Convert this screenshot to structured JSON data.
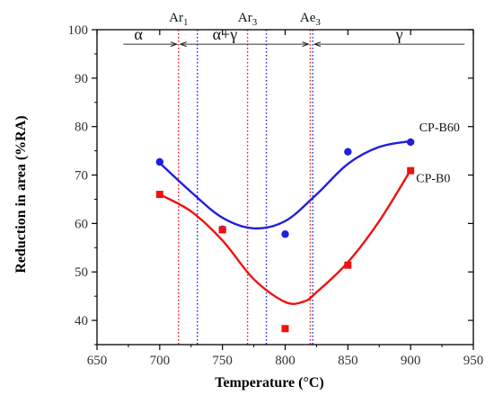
{
  "chart_data": {
    "type": "scatter",
    "xlabel": "Temperature (°C)",
    "ylabel": "Reduction in area (%RA)",
    "xlim": [
      650,
      950
    ],
    "ylim": [
      35,
      100
    ],
    "x_ticks": [
      "650",
      "700",
      "750",
      "800",
      "850",
      "900",
      "950"
    ],
    "y_ticks": [
      "40",
      "50",
      "60",
      "70",
      "80",
      "90",
      "100"
    ],
    "grid": false,
    "series": [
      {
        "name": "CP-B60",
        "color": "#1f1fe0",
        "marker": "circle",
        "x": [
          700,
          750,
          800,
          850,
          900
        ],
        "y": [
          72.7,
          58.8,
          57.8,
          74.8,
          76.8
        ],
        "fit_curve": [
          [
            700,
            72.5
          ],
          [
            725,
            66.5
          ],
          [
            750,
            61.2
          ],
          [
            775,
            59.0
          ],
          [
            800,
            60.5
          ],
          [
            825,
            66.0
          ],
          [
            850,
            72.3
          ],
          [
            875,
            75.8
          ],
          [
            900,
            77.0
          ]
        ]
      },
      {
        "name": "CP-B0",
        "color": "#ee1111",
        "marker": "square",
        "x": [
          700,
          750,
          800,
          850,
          900
        ],
        "y": [
          66.0,
          58.7,
          38.3,
          51.4,
          70.9
        ],
        "fit_curve": [
          [
            700,
            66.0
          ],
          [
            725,
            62.5
          ],
          [
            750,
            56.5
          ],
          [
            775,
            48.5
          ],
          [
            800,
            43.8
          ],
          [
            815,
            43.9
          ],
          [
            825,
            45.8
          ],
          [
            850,
            52.0
          ],
          [
            875,
            60.5
          ],
          [
            900,
            71.0
          ]
        ]
      }
    ],
    "critical_temperatures": [
      {
        "label": "Ar",
        "subscript": "1",
        "x": 715,
        "color": "#ee1111",
        "marker_line": "red-dotted"
      },
      {
        "label": "",
        "subscript": "",
        "x": 730,
        "color": "#1f1fe0",
        "marker_line": "blue-dotted"
      },
      {
        "label": "Ar",
        "subscript": "3",
        "x": 770,
        "color": "#ee1111",
        "marker_line": "red-dotted"
      },
      {
        "label": "",
        "subscript": "",
        "x": 785,
        "color": "#1f1fe0",
        "marker_line": "blue-dotted"
      },
      {
        "label": "Ae",
        "subscript": "3",
        "x": 820,
        "color": "#ee1111",
        "marker_line": "red-dotted"
      },
      {
        "label": "",
        "subscript": "",
        "x": 822,
        "color": "#1f1fe0",
        "marker_line": "blue-dotted"
      }
    ],
    "phase_regions": [
      {
        "label": "α",
        "x": 683
      },
      {
        "label": "α+γ",
        "x": 752
      },
      {
        "label": "γ",
        "x": 891
      }
    ],
    "phase_arrow_y": 97,
    "series_labels": [
      {
        "text": "CP-B60",
        "x": 923,
        "y": 79
      },
      {
        "text": "CP-B0",
        "x": 918,
        "y": 68.5
      }
    ]
  }
}
